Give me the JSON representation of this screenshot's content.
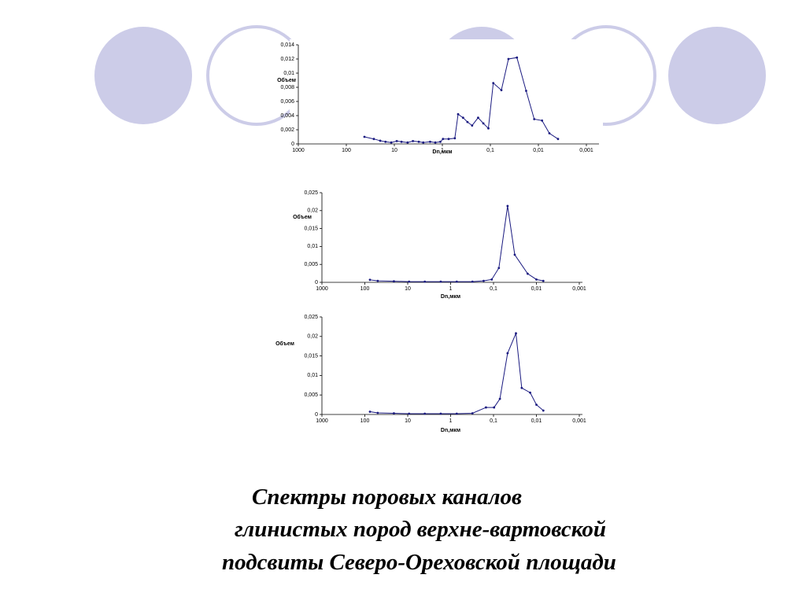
{
  "chart_data": [
    {
      "type": "line",
      "ylabel": "Объем",
      "xlabel": "Dn,мкм",
      "log_x": true,
      "color": "#1a1a80",
      "xlim": [
        1000,
        0.001
      ],
      "xticks": [
        1000,
        100,
        10,
        1,
        {
          "value": 0.1,
          "label": "0,1"
        },
        {
          "value": 0.01,
          "label": "0,01"
        },
        {
          "value": 0.001,
          "label": "0,001"
        }
      ],
      "ylim": [
        0,
        0.014
      ],
      "yticks": [
        0,
        {
          "value": 0.002,
          "label": "0,002"
        },
        {
          "value": 0.004,
          "label": "0,004"
        },
        {
          "value": 0.006,
          "label": "0,006"
        },
        {
          "value": 0.008,
          "label": "0,008"
        },
        {
          "value": 0.01,
          "label": "0,01"
        },
        {
          "value": 0.012,
          "label": "0,012"
        },
        {
          "value": 0.014,
          "label": "0,014"
        }
      ],
      "x": [
        42,
        26.7,
        19.7,
        15.3,
        11.6,
        8.9,
        7.1,
        5.3,
        4.1,
        3.1,
        2.5,
        1.8,
        1.4,
        1.1,
        0.97,
        0.74,
        0.55,
        0.47,
        0.37,
        0.3,
        0.24,
        0.18,
        0.14,
        0.11,
        0.087,
        0.059,
        0.042,
        0.028,
        0.018,
        0.0122,
        0.0084,
        0.0059,
        0.0039
      ],
      "values": [
        0.001,
        0.0007,
        0.00045,
        0.0003,
        0.0002,
        0.0004,
        0.0003,
        0.0002,
        0.0004,
        0.0003,
        0.0002,
        0.0003,
        0.0002,
        0.0003,
        0.0007,
        0.0007,
        0.0008,
        0.0042,
        0.0037,
        0.0031,
        0.0026,
        0.0037,
        0.0029,
        0.0022,
        0.0086,
        0.0076,
        0.012,
        0.0122,
        0.0075,
        0.0035,
        0.0033,
        0.0015,
        0.0007
      ]
    },
    {
      "type": "line",
      "ylabel": "Объем",
      "xlabel": "Dn,мкм",
      "log_x": true,
      "color": "#1a1a80",
      "xlim": [
        1000,
        0.001
      ],
      "xticks": [
        1000,
        100,
        10,
        1,
        {
          "value": 0.1,
          "label": "0,1"
        },
        {
          "value": 0.01,
          "label": "0,01"
        },
        {
          "value": 0.001,
          "label": "0,001"
        }
      ],
      "ylim": [
        0,
        0.025
      ],
      "yticks": [
        0,
        {
          "value": 0.005,
          "label": "0,005"
        },
        {
          "value": 0.01,
          "label": "0,01"
        },
        {
          "value": 0.015,
          "label": "0,015"
        },
        {
          "value": 0.02,
          "label": "0,02"
        },
        {
          "value": 0.025,
          "label": "0,025"
        }
      ],
      "x": [
        76,
        50,
        21,
        9.3,
        4,
        1.7,
        0.72,
        0.31,
        0.17,
        0.11,
        0.075,
        0.047,
        0.032,
        0.016,
        0.01,
        0.0069
      ],
      "values": [
        0.0007,
        0.0004,
        0.0003,
        0.0002,
        0.0002,
        0.0002,
        0.0002,
        0.0002,
        0.0004,
        0.0008,
        0.004,
        0.0213,
        0.0077,
        0.0024,
        0.0008,
        0.0004
      ]
    },
    {
      "type": "line",
      "ylabel": "Объем",
      "xlabel": "Dn,мкм",
      "log_x": true,
      "color": "#1a1a80",
      "xlim": [
        1000,
        0.001
      ],
      "xticks": [
        1000,
        100,
        10,
        1,
        {
          "value": 0.1,
          "label": "0,1"
        },
        {
          "value": 0.01,
          "label": "0,01"
        },
        {
          "value": 0.001,
          "label": "0,001"
        }
      ],
      "ylim": [
        0,
        0.025
      ],
      "yticks": [
        0,
        {
          "value": 0.005,
          "label": "0,005"
        },
        {
          "value": 0.01,
          "label": "0,01"
        },
        {
          "value": 0.015,
          "label": "0,015"
        },
        {
          "value": 0.02,
          "label": "0,02"
        },
        {
          "value": 0.025,
          "label": "0,025"
        }
      ],
      "x": [
        76,
        50,
        21,
        9.3,
        4,
        1.7,
        0.72,
        0.31,
        0.15,
        0.097,
        0.071,
        0.047,
        0.03,
        0.022,
        0.014,
        0.01,
        0.0069
      ],
      "values": [
        0.0007,
        0.0004,
        0.0003,
        0.0002,
        0.0002,
        0.0002,
        0.0002,
        0.0003,
        0.0018,
        0.0018,
        0.004,
        0.0157,
        0.0208,
        0.0068,
        0.0056,
        0.0025,
        0.001
      ]
    }
  ],
  "caption": [
    "Спектры поровых каналов",
    "глинистых пород верхне-вартовской",
    "подсвиты Северо-Ореховской площади"
  ]
}
